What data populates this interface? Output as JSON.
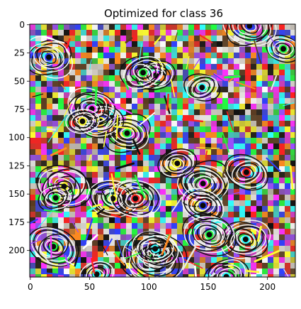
{
  "title": "Optimized for class 36",
  "image_width": 224,
  "image_height": 224,
  "x_ticks": [
    0,
    50,
    100,
    150,
    200
  ],
  "y_ticks": [
    0,
    25,
    50,
    75,
    100,
    125,
    150,
    175,
    200
  ],
  "palette": [
    "#ff2020",
    "#20ff40",
    "#3040ff",
    "#ff30ff",
    "#ffff30",
    "#30ffff",
    "#ffffff",
    "#101010",
    "#ff8a20",
    "#9b4dff",
    "#5a3a20",
    "#e8e8e8"
  ],
  "feature_description_icon": "adversarial-feature-visualization"
}
